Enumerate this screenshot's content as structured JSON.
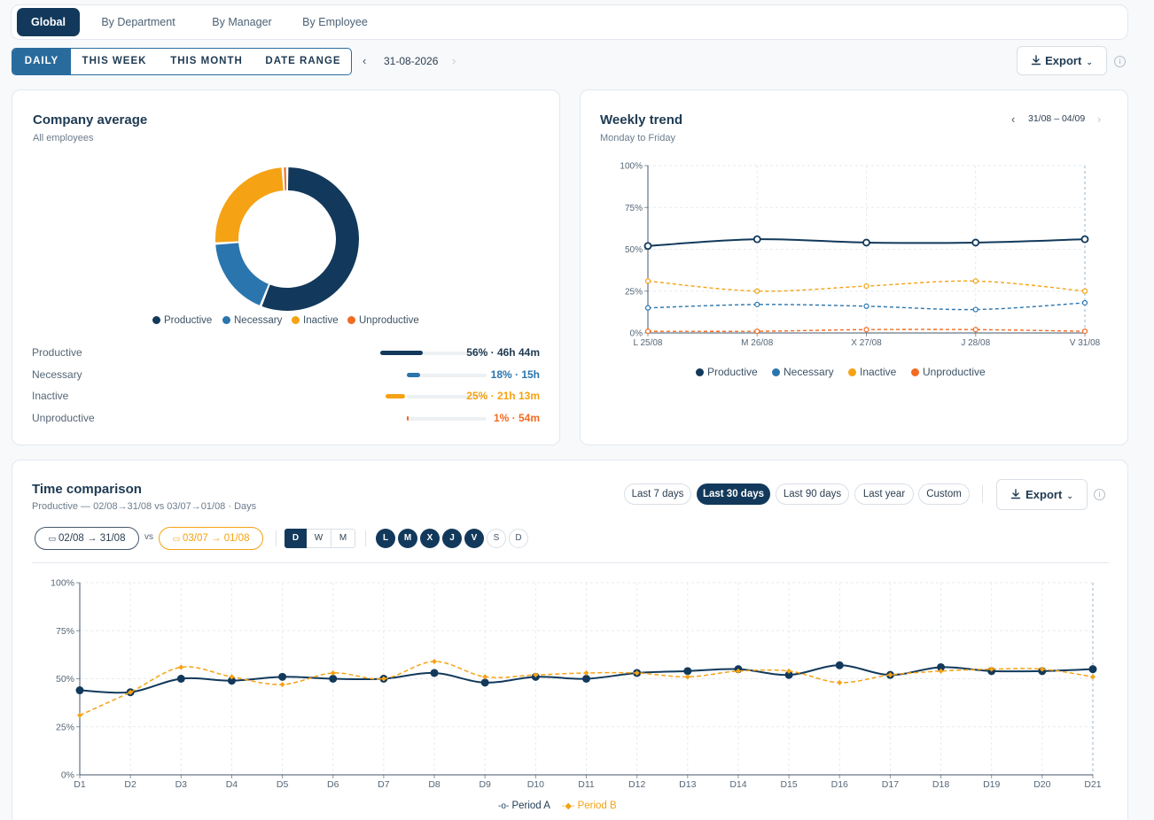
{
  "top_tabs": [
    {
      "label": "Global",
      "active": true
    },
    {
      "label": "By Department",
      "active": false
    },
    {
      "label": "By Manager",
      "active": false
    },
    {
      "label": "By Employee",
      "active": false
    }
  ],
  "period_tabs": [
    {
      "label": "DAILY",
      "active": true
    },
    {
      "label": "THIS WEEK",
      "active": false
    },
    {
      "label": "THIS MONTH",
      "active": false
    },
    {
      "label": "DATE RANGE",
      "active": false
    }
  ],
  "date_nav": {
    "date": "31-08-2026"
  },
  "export_label": "Export",
  "company_average": {
    "title": "Company average",
    "subtitle": "All employees",
    "legend": [
      "Productive",
      "Necessary",
      "Inactive",
      "Unproductive"
    ],
    "breakdown": [
      {
        "label": "Productive",
        "value": "56% · 46h 44m",
        "pct": 56,
        "color": "#12395b"
      },
      {
        "label": "Necessary",
        "value": "18% · 15h",
        "pct": 18,
        "color": "#2a75ad"
      },
      {
        "label": "Inactive",
        "value": "25% · 21h 13m",
        "pct": 25,
        "color": "#f5a214"
      },
      {
        "label": "Unproductive",
        "value": "1% · 54m",
        "pct": 1,
        "color": "#f26b21"
      }
    ]
  },
  "weekly_trend": {
    "title": "Weekly trend",
    "subtitle": "Monday to Friday",
    "range": "31/08 – 04/09",
    "legend": [
      "Productive",
      "Necessary",
      "Inactive",
      "Unproductive"
    ]
  },
  "time_comparison": {
    "title": "Time comparison",
    "subtitle": "Productive — 02/08→31/08 vs 03/07→01/08 · Days",
    "range_pills": [
      {
        "label": "Last 7 days",
        "active": false
      },
      {
        "label": "Last 30 days",
        "active": true
      },
      {
        "label": "Last 90 days",
        "active": false
      },
      {
        "label": "Last year",
        "active": false
      },
      {
        "label": "Custom",
        "active": false
      }
    ],
    "period_a": "02/08 → 31/08",
    "vs": "vs",
    "period_b": "03/07 → 01/08",
    "granularity": [
      {
        "label": "D",
        "active": true
      },
      {
        "label": "W",
        "active": false
      },
      {
        "label": "M",
        "active": false
      }
    ],
    "weekdays": [
      {
        "label": "L",
        "on": true
      },
      {
        "label": "M",
        "on": true
      },
      {
        "label": "X",
        "on": true
      },
      {
        "label": "J",
        "on": true
      },
      {
        "label": "V",
        "on": true
      },
      {
        "label": "S",
        "on": false
      },
      {
        "label": "D",
        "on": false
      }
    ],
    "legend": [
      "Period A",
      "Period B"
    ]
  },
  "chart_data": [
    {
      "type": "pie",
      "categories": [
        "Productive",
        "Necessary",
        "Inactive",
        "Unproductive"
      ],
      "values": [
        56,
        18,
        25,
        1
      ],
      "colors": [
        "#12395b",
        "#2a75ad",
        "#f5a214",
        "#f26b21"
      ],
      "legend": "bottom"
    },
    {
      "type": "line",
      "categories": [
        "L 25/08",
        "M 26/08",
        "X 27/08",
        "J 28/08",
        "V 31/08"
      ],
      "series": [
        {
          "name": "Productive",
          "values": [
            52,
            56,
            54,
            54,
            56
          ],
          "color": "#12395b"
        },
        {
          "name": "Necessary",
          "values": [
            15,
            17,
            16,
            14,
            18
          ],
          "color": "#2a75ad"
        },
        {
          "name": "Inactive",
          "values": [
            31,
            25,
            28,
            31,
            25
          ],
          "color": "#f5a214"
        },
        {
          "name": "Unproductive",
          "values": [
            1,
            1,
            2,
            2,
            1
          ],
          "color": "#f26b21"
        }
      ],
      "yticks": [
        "0%",
        "25%",
        "50%",
        "75%",
        "100%"
      ],
      "ylim": [
        0,
        100
      ],
      "grid": true,
      "legend": "bottom"
    },
    {
      "type": "line",
      "categories": [
        "D1",
        "D2",
        "D3",
        "D4",
        "D5",
        "D6",
        "D7",
        "D8",
        "D9",
        "D10",
        "D11",
        "D12",
        "D13",
        "D14",
        "D15",
        "D16",
        "D17",
        "D18",
        "D19",
        "D20",
        "D21"
      ],
      "series": [
        {
          "name": "Period A",
          "values": [
            44,
            43,
            50,
            49,
            51,
            50,
            50,
            53,
            48,
            51,
            50,
            53,
            54,
            55,
            52,
            57,
            52,
            56,
            54,
            54,
            55
          ],
          "color": "#12395b"
        },
        {
          "name": "Period B",
          "values": [
            31,
            43,
            56,
            51,
            47,
            53,
            50,
            59,
            51,
            52,
            53,
            53,
            51,
            54,
            54,
            48,
            52,
            54,
            55,
            55,
            51
          ],
          "color": "#f5a214"
        }
      ],
      "yticks": [
        "0%",
        "25%",
        "50%",
        "75%",
        "100%"
      ],
      "ylim": [
        0,
        100
      ],
      "grid": true,
      "legend": "bottom"
    }
  ]
}
